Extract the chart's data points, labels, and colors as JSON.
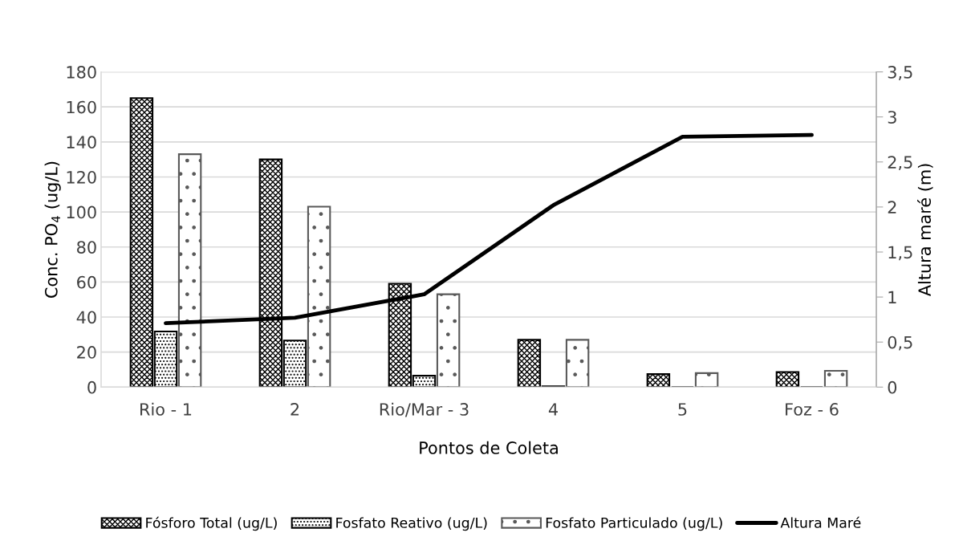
{
  "chart_data": {
    "type": "bar",
    "xlabel": "Pontos de Coleta",
    "ylabel": "Conc. PO$_{4}$ (ug/L)",
    "y2label": "Altura maré (m)",
    "categories": [
      "Rio - 1",
      "2",
      "Rio/Mar - 3",
      "4",
      "5",
      "Foz - 6"
    ],
    "series": [
      {
        "name": "Fósforo Total (ug/L)",
        "color": "#000000",
        "values": [
          165,
          130,
          59,
          27,
          7.4,
          8.6
        ]
      },
      {
        "name": "Fosfato Reativo (ug/L)",
        "color": "#000000",
        "values": [
          31.8,
          26.6,
          6.5,
          0.5,
          0,
          0
        ]
      },
      {
        "name": "Fosfato Particulado (ug/L)",
        "color": "#595959",
        "values": [
          133,
          103,
          53,
          27,
          8,
          9.3
        ]
      },
      {
        "name": "Altura Maré",
        "type": "line",
        "axis": "y2",
        "color": "#000000",
        "values": [
          0.71,
          0.77,
          1.03,
          2.02,
          2.78,
          2.8
        ]
      }
    ],
    "ylim": [
      0,
      180
    ],
    "yticks": [
      0,
      20,
      40,
      60,
      80,
      100,
      120,
      140,
      160,
      180
    ],
    "y2lim": [
      0,
      3.5
    ],
    "y2ticks": [
      0,
      {
        "value": 0.5,
        "label": "0,5"
      },
      1,
      {
        "value": 1.5,
        "label": "1,5"
      },
      2,
      {
        "value": 2.5,
        "label": "2,5"
      },
      3,
      {
        "value": 3.5,
        "label": "3,5"
      }
    ],
    "grid": "y",
    "legend": "bottom",
    "line_style": "solid",
    "marker": "none"
  }
}
